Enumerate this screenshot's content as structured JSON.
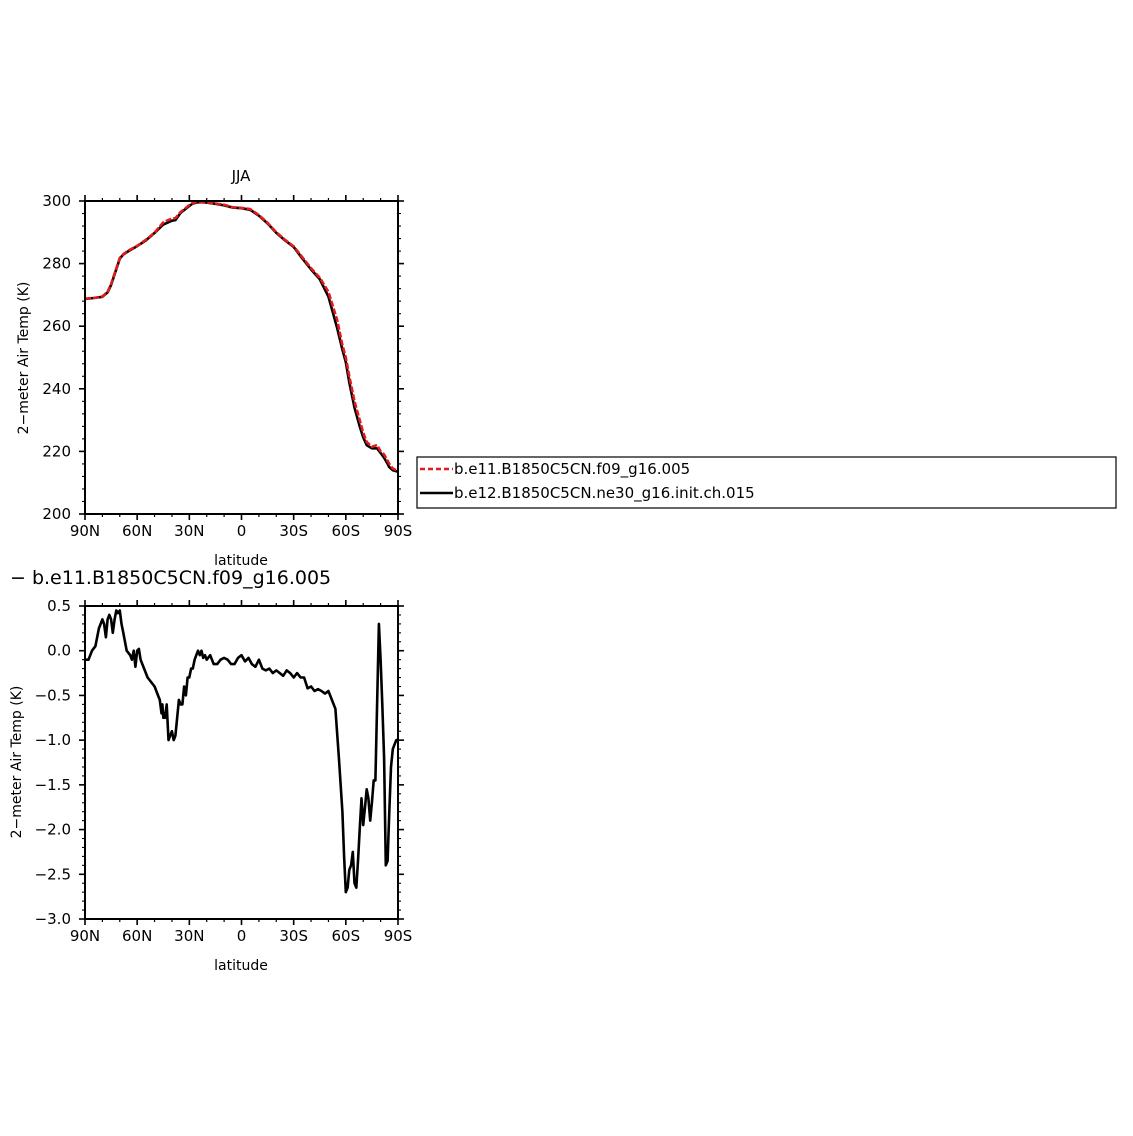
{
  "chart_data": [
    {
      "type": "line",
      "title": "JJA",
      "xlabel": "latitude",
      "ylabel": "2−meter Air Temp (K)",
      "xlim": [
        90,
        -90
      ],
      "ylim": [
        200,
        300
      ],
      "x_ticks": [
        90,
        60,
        30,
        0,
        -30,
        -60,
        -90
      ],
      "x_tick_labels": [
        "90N",
        "60N",
        "30N",
        "0",
        "30S",
        "60S",
        "90S"
      ],
      "y_ticks": [
        200,
        220,
        240,
        260,
        280,
        300
      ],
      "y_tick_labels": [
        "200",
        "220",
        "240",
        "260",
        "280",
        "300"
      ],
      "legend": "right",
      "series": [
        {
          "name": "b.e11.B1850C5CN.f09_g16.005",
          "color": "#e41a1c",
          "dash": true,
          "x": [
            90,
            85,
            80,
            77,
            75,
            72,
            70,
            68,
            65,
            60,
            55,
            50,
            45,
            40,
            38,
            35,
            30,
            28,
            25,
            22,
            20,
            15,
            10,
            5,
            0,
            -5,
            -10,
            -15,
            -20,
            -25,
            -30,
            -35,
            -40,
            -45,
            -50,
            -55,
            -58,
            -60,
            -62,
            -65,
            -68,
            -70,
            -72,
            -75,
            -78,
            -80,
            -82,
            -84,
            -85,
            -87,
            -90
          ],
          "y": [
            268.8,
            269.0,
            269.5,
            271.0,
            273.5,
            278.5,
            281.8,
            283.0,
            284.2,
            285.7,
            287.6,
            289.9,
            293.2,
            294.4,
            294.5,
            296.5,
            298.7,
            299.4,
            299.7,
            299.6,
            299.6,
            299.2,
            298.8,
            298.0,
            297.8,
            297.4,
            295.5,
            293.0,
            290.0,
            287.6,
            285.5,
            282.0,
            278.5,
            275.5,
            271.0,
            262.0,
            254.0,
            250.0,
            244.0,
            236.0,
            230.0,
            226.0,
            223.0,
            221.5,
            222.0,
            220.0,
            219.0,
            217.0,
            216.0,
            214.5,
            213.8
          ]
        },
        {
          "name": "b.e12.B1850C5CN.ne30_g16.init.ch.015",
          "color": "#000000",
          "dash": false,
          "x": [
            90,
            85,
            80,
            77,
            75,
            72,
            70,
            68,
            65,
            60,
            55,
            50,
            45,
            40,
            38,
            35,
            30,
            28,
            25,
            22,
            20,
            15,
            10,
            5,
            0,
            -5,
            -10,
            -15,
            -20,
            -25,
            -30,
            -35,
            -40,
            -45,
            -50,
            -55,
            -58,
            -60,
            -62,
            -65,
            -68,
            -70,
            -72,
            -75,
            -78,
            -80,
            -82,
            -84,
            -85,
            -87,
            -90
          ],
          "y": [
            268.7,
            269.0,
            269.4,
            270.8,
            273.2,
            278.2,
            281.6,
            282.9,
            284.0,
            285.6,
            287.4,
            289.8,
            292.5,
            293.7,
            293.9,
            296.2,
            298.4,
            299.2,
            299.6,
            299.6,
            299.5,
            299.1,
            298.6,
            297.9,
            297.7,
            297.2,
            295.3,
            292.8,
            289.8,
            287.4,
            285.3,
            281.6,
            278.1,
            275.0,
            269.5,
            259.5,
            252.5,
            248.5,
            242.0,
            234.0,
            228.0,
            224.5,
            222.0,
            221.0,
            221.0,
            219.5,
            218.0,
            216.0,
            215.0,
            214.0,
            213.5
          ]
        }
      ]
    },
    {
      "type": "line",
      "title": "− b.e11.B1850C5CN.f09_g16.005",
      "xlabel": "latitude",
      "ylabel": "2−meter Air Temp (K)",
      "xlim": [
        90,
        -90
      ],
      "ylim": [
        -3.0,
        0.5
      ],
      "x_ticks": [
        90,
        60,
        30,
        0,
        -30,
        -60,
        -90
      ],
      "x_tick_labels": [
        "90N",
        "60N",
        "30N",
        "0",
        "30S",
        "60S",
        "90S"
      ],
      "y_ticks": [
        -3.0,
        -2.5,
        -2.0,
        -1.5,
        -1.0,
        -0.5,
        0.0,
        0.5
      ],
      "y_tick_labels": [
        "−3.0",
        "−2.5",
        "−2.0",
        "−1.5",
        "−1.0",
        "−0.5",
        "0.0",
        "0.5"
      ],
      "series": [
        {
          "color": "#000000",
          "x": [
            90,
            88,
            86,
            84,
            82,
            80,
            79,
            78,
            77,
            76,
            75,
            74,
            73,
            72,
            71,
            70,
            69,
            68,
            66,
            64,
            63,
            62,
            61,
            60,
            59,
            58,
            56,
            54,
            52,
            50,
            48,
            47,
            46,
            45.5,
            45,
            44.5,
            44,
            43,
            42,
            41,
            40,
            39,
            38,
            36,
            35,
            34,
            33,
            32,
            31,
            30,
            29,
            28,
            27,
            26,
            25,
            24,
            23,
            22,
            21,
            20,
            18,
            16,
            14,
            12,
            10,
            8,
            6,
            4,
            2,
            0,
            -2,
            -4,
            -6,
            -8,
            -10,
            -12,
            -14,
            -16,
            -18,
            -20,
            -22,
            -24,
            -26,
            -28,
            -30,
            -32,
            -34,
            -36,
            -38,
            -40,
            -42,
            -44,
            -46,
            -48,
            -50,
            -52,
            -54,
            -56,
            -58,
            -59,
            -60,
            -61,
            -62,
            -63,
            -64,
            -65,
            -66,
            -67,
            -68,
            -69,
            -70,
            -71,
            -72,
            -73,
            -74,
            -75,
            -76,
            -77,
            -78,
            -79,
            -80,
            -81,
            -82,
            -83,
            -84,
            -85,
            -86,
            -87,
            -88,
            -89,
            -90
          ],
          "y": [
            -0.1,
            -0.1,
            0.0,
            0.05,
            0.25,
            0.35,
            0.3,
            0.15,
            0.35,
            0.4,
            0.35,
            0.2,
            0.35,
            0.45,
            0.42,
            0.45,
            0.3,
            0.2,
            0.0,
            -0.05,
            -0.1,
            0.0,
            -0.18,
            0.0,
            0.02,
            -0.1,
            -0.2,
            -0.3,
            -0.35,
            -0.4,
            -0.5,
            -0.55,
            -0.7,
            -0.6,
            -0.75,
            -0.7,
            -0.75,
            -0.6,
            -1.0,
            -0.95,
            -0.9,
            -1.0,
            -0.95,
            -0.55,
            -0.6,
            -0.6,
            -0.4,
            -0.5,
            -0.3,
            -0.3,
            -0.2,
            -0.2,
            -0.1,
            -0.05,
            0.0,
            -0.05,
            0.0,
            -0.08,
            -0.05,
            -0.1,
            -0.05,
            -0.15,
            -0.15,
            -0.1,
            -0.08,
            -0.1,
            -0.15,
            -0.15,
            -0.08,
            -0.05,
            -0.12,
            -0.08,
            -0.15,
            -0.18,
            -0.1,
            -0.2,
            -0.22,
            -0.2,
            -0.25,
            -0.22,
            -0.25,
            -0.28,
            -0.22,
            -0.25,
            -0.3,
            -0.25,
            -0.3,
            -0.3,
            -0.42,
            -0.4,
            -0.45,
            -0.43,
            -0.45,
            -0.48,
            -0.45,
            -0.55,
            -0.65,
            -1.2,
            -1.8,
            -2.3,
            -2.7,
            -2.65,
            -2.45,
            -2.4,
            -2.25,
            -2.6,
            -2.65,
            -2.35,
            -2.0,
            -1.65,
            -1.95,
            -1.75,
            -1.55,
            -1.65,
            -1.9,
            -1.7,
            -1.45,
            -1.45,
            -0.6,
            0.3,
            -0.1,
            -0.6,
            -1.2,
            -2.4,
            -2.35,
            -1.8,
            -1.3,
            -1.1,
            -1.05,
            -1.0,
            -1.0
          ]
        }
      ]
    }
  ]
}
